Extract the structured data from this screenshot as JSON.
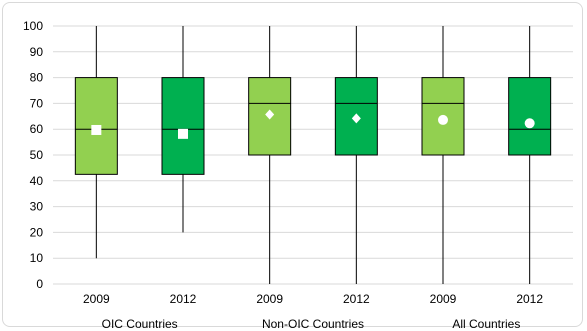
{
  "chart_data": {
    "type": "boxplot",
    "title": "",
    "xlabel": "",
    "ylabel": "",
    "ylim": [
      0,
      100
    ],
    "yticks": [
      0,
      10,
      20,
      30,
      40,
      50,
      60,
      70,
      80,
      90,
      100
    ],
    "grid": true,
    "legend": "none",
    "groups": [
      {
        "name": "OIC Countries",
        "boxes": [
          {
            "label": "2009",
            "whisker_low": 10,
            "q1": 42.5,
            "median": 60,
            "q3": 80,
            "whisker_high": 100,
            "mean": 59.7,
            "mean_marker": "square",
            "color": "#92d050"
          },
          {
            "label": "2012",
            "whisker_low": 20,
            "q1": 42.5,
            "median": 60,
            "q3": 80,
            "whisker_high": 100,
            "mean": 58.2,
            "mean_marker": "square",
            "color": "#00b050"
          }
        ]
      },
      {
        "name": "Non-OIC Countries",
        "boxes": [
          {
            "label": "2009",
            "whisker_low": 0,
            "q1": 50,
            "median": 70,
            "q3": 80,
            "whisker_high": 100,
            "mean": 65.7,
            "mean_marker": "diamond",
            "color": "#92d050"
          },
          {
            "label": "2012",
            "whisker_low": 0,
            "q1": 50,
            "median": 70,
            "q3": 80,
            "whisker_high": 100,
            "mean": 64.2,
            "mean_marker": "diamond",
            "color": "#00b050"
          }
        ]
      },
      {
        "name": "All Countries",
        "boxes": [
          {
            "label": "2009",
            "whisker_low": 0,
            "q1": 50,
            "median": 70,
            "q3": 80,
            "whisker_high": 100,
            "mean": 63.6,
            "mean_marker": "circle",
            "color": "#92d050"
          },
          {
            "label": "2012",
            "whisker_low": 0,
            "q1": 50,
            "median": 60,
            "q3": 80,
            "whisker_high": 100,
            "mean": 62.3,
            "mean_marker": "circle",
            "color": "#00b050"
          }
        ]
      }
    ]
  }
}
